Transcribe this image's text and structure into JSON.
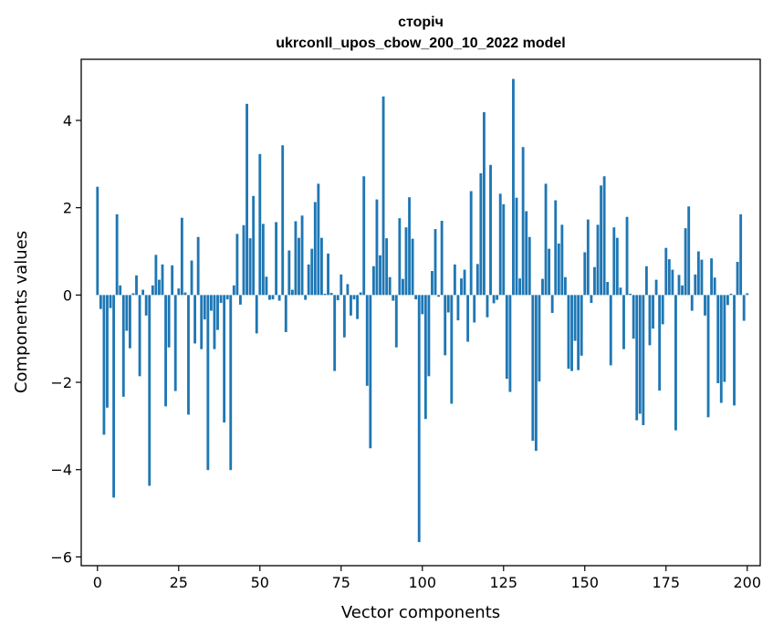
{
  "chart_data": {
    "type": "bar",
    "title": "сторіч",
    "subtitle": "ukrconll_upos_cbow_200_10_2022 model",
    "xlabel": "Vector components",
    "ylabel": "Components values",
    "xlim": [
      -5,
      204
    ],
    "ylim": [
      -6.2,
      5.4
    ],
    "xticks": [
      0,
      25,
      50,
      75,
      100,
      125,
      150,
      175,
      200
    ],
    "yticks": [
      -6,
      -4,
      -2,
      0,
      2,
      4
    ],
    "grid": false,
    "bar_color": "#1f77b4",
    "values": [
      2.48,
      -0.32,
      -3.2,
      -2.58,
      -0.3,
      -4.64,
      1.85,
      0.22,
      -2.33,
      -0.82,
      -1.22,
      0.04,
      0.45,
      -1.86,
      0.12,
      -0.47,
      -4.37,
      0.22,
      0.92,
      0.35,
      0.7,
      -2.55,
      -1.2,
      0.68,
      -2.2,
      0.15,
      1.77,
      0.06,
      -2.74,
      0.79,
      -1.11,
      1.33,
      -1.24,
      -0.56,
      -4.01,
      -0.36,
      -1.24,
      -0.8,
      -0.18,
      -2.92,
      -0.1,
      -4.01,
      0.22,
      1.4,
      -0.22,
      1.6,
      4.38,
      1.3,
      2.27,
      -0.88,
      3.23,
      1.63,
      0.42,
      -0.11,
      -0.1,
      1.67,
      -0.13,
      3.43,
      -0.85,
      1.02,
      0.12,
      1.69,
      1.31,
      1.82,
      -0.11,
      0.7,
      1.06,
      2.13,
      2.55,
      1.31,
      0.03,
      0.95,
      0.05,
      -1.74,
      -0.12,
      0.47,
      -0.97,
      0.25,
      -0.47,
      -0.1,
      -0.55,
      0.06,
      2.72,
      -2.08,
      -3.51,
      0.66,
      2.19,
      0.91,
      4.55,
      1.3,
      0.41,
      -0.13,
      -1.2,
      1.76,
      0.37,
      1.55,
      2.24,
      1.29,
      -0.1,
      -5.66,
      -0.44,
      -2.84,
      -1.86,
      0.55,
      1.51,
      -0.04,
      1.7,
      -1.38,
      -0.4,
      -2.49,
      0.7,
      -0.58,
      0.38,
      0.58,
      -1.07,
      2.38,
      -0.63,
      0.71,
      2.79,
      4.19,
      -0.51,
      2.98,
      -0.19,
      -0.11,
      2.32,
      2.08,
      -1.92,
      -2.22,
      4.95,
      2.23,
      0.38,
      3.39,
      1.92,
      1.33,
      -3.34,
      -3.57,
      -1.98,
      0.37,
      2.55,
      1.06,
      -0.41,
      2.17,
      1.18,
      1.61,
      0.41,
      -1.69,
      -1.74,
      -1.05,
      -1.72,
      -1.39,
      0.98,
      1.73,
      -0.18,
      0.64,
      1.61,
      2.51,
      2.72,
      0.3,
      -1.61,
      1.55,
      1.31,
      0.17,
      -1.24,
      1.79,
      0.03,
      -1.0,
      -2.87,
      -2.72,
      -2.98,
      0.66,
      -1.15,
      -0.77,
      0.35,
      -2.19,
      -0.67,
      1.08,
      0.82,
      0.58,
      -3.1,
      0.46,
      0.22,
      1.53,
      2.03,
      -0.36,
      0.47,
      1.0,
      0.81,
      -0.47,
      -2.8,
      0.84,
      0.4,
      -2.02,
      -2.47,
      -1.99,
      -0.23,
      0.03,
      -2.53,
      0.76,
      1.85,
      -0.59,
      0.04
    ]
  }
}
